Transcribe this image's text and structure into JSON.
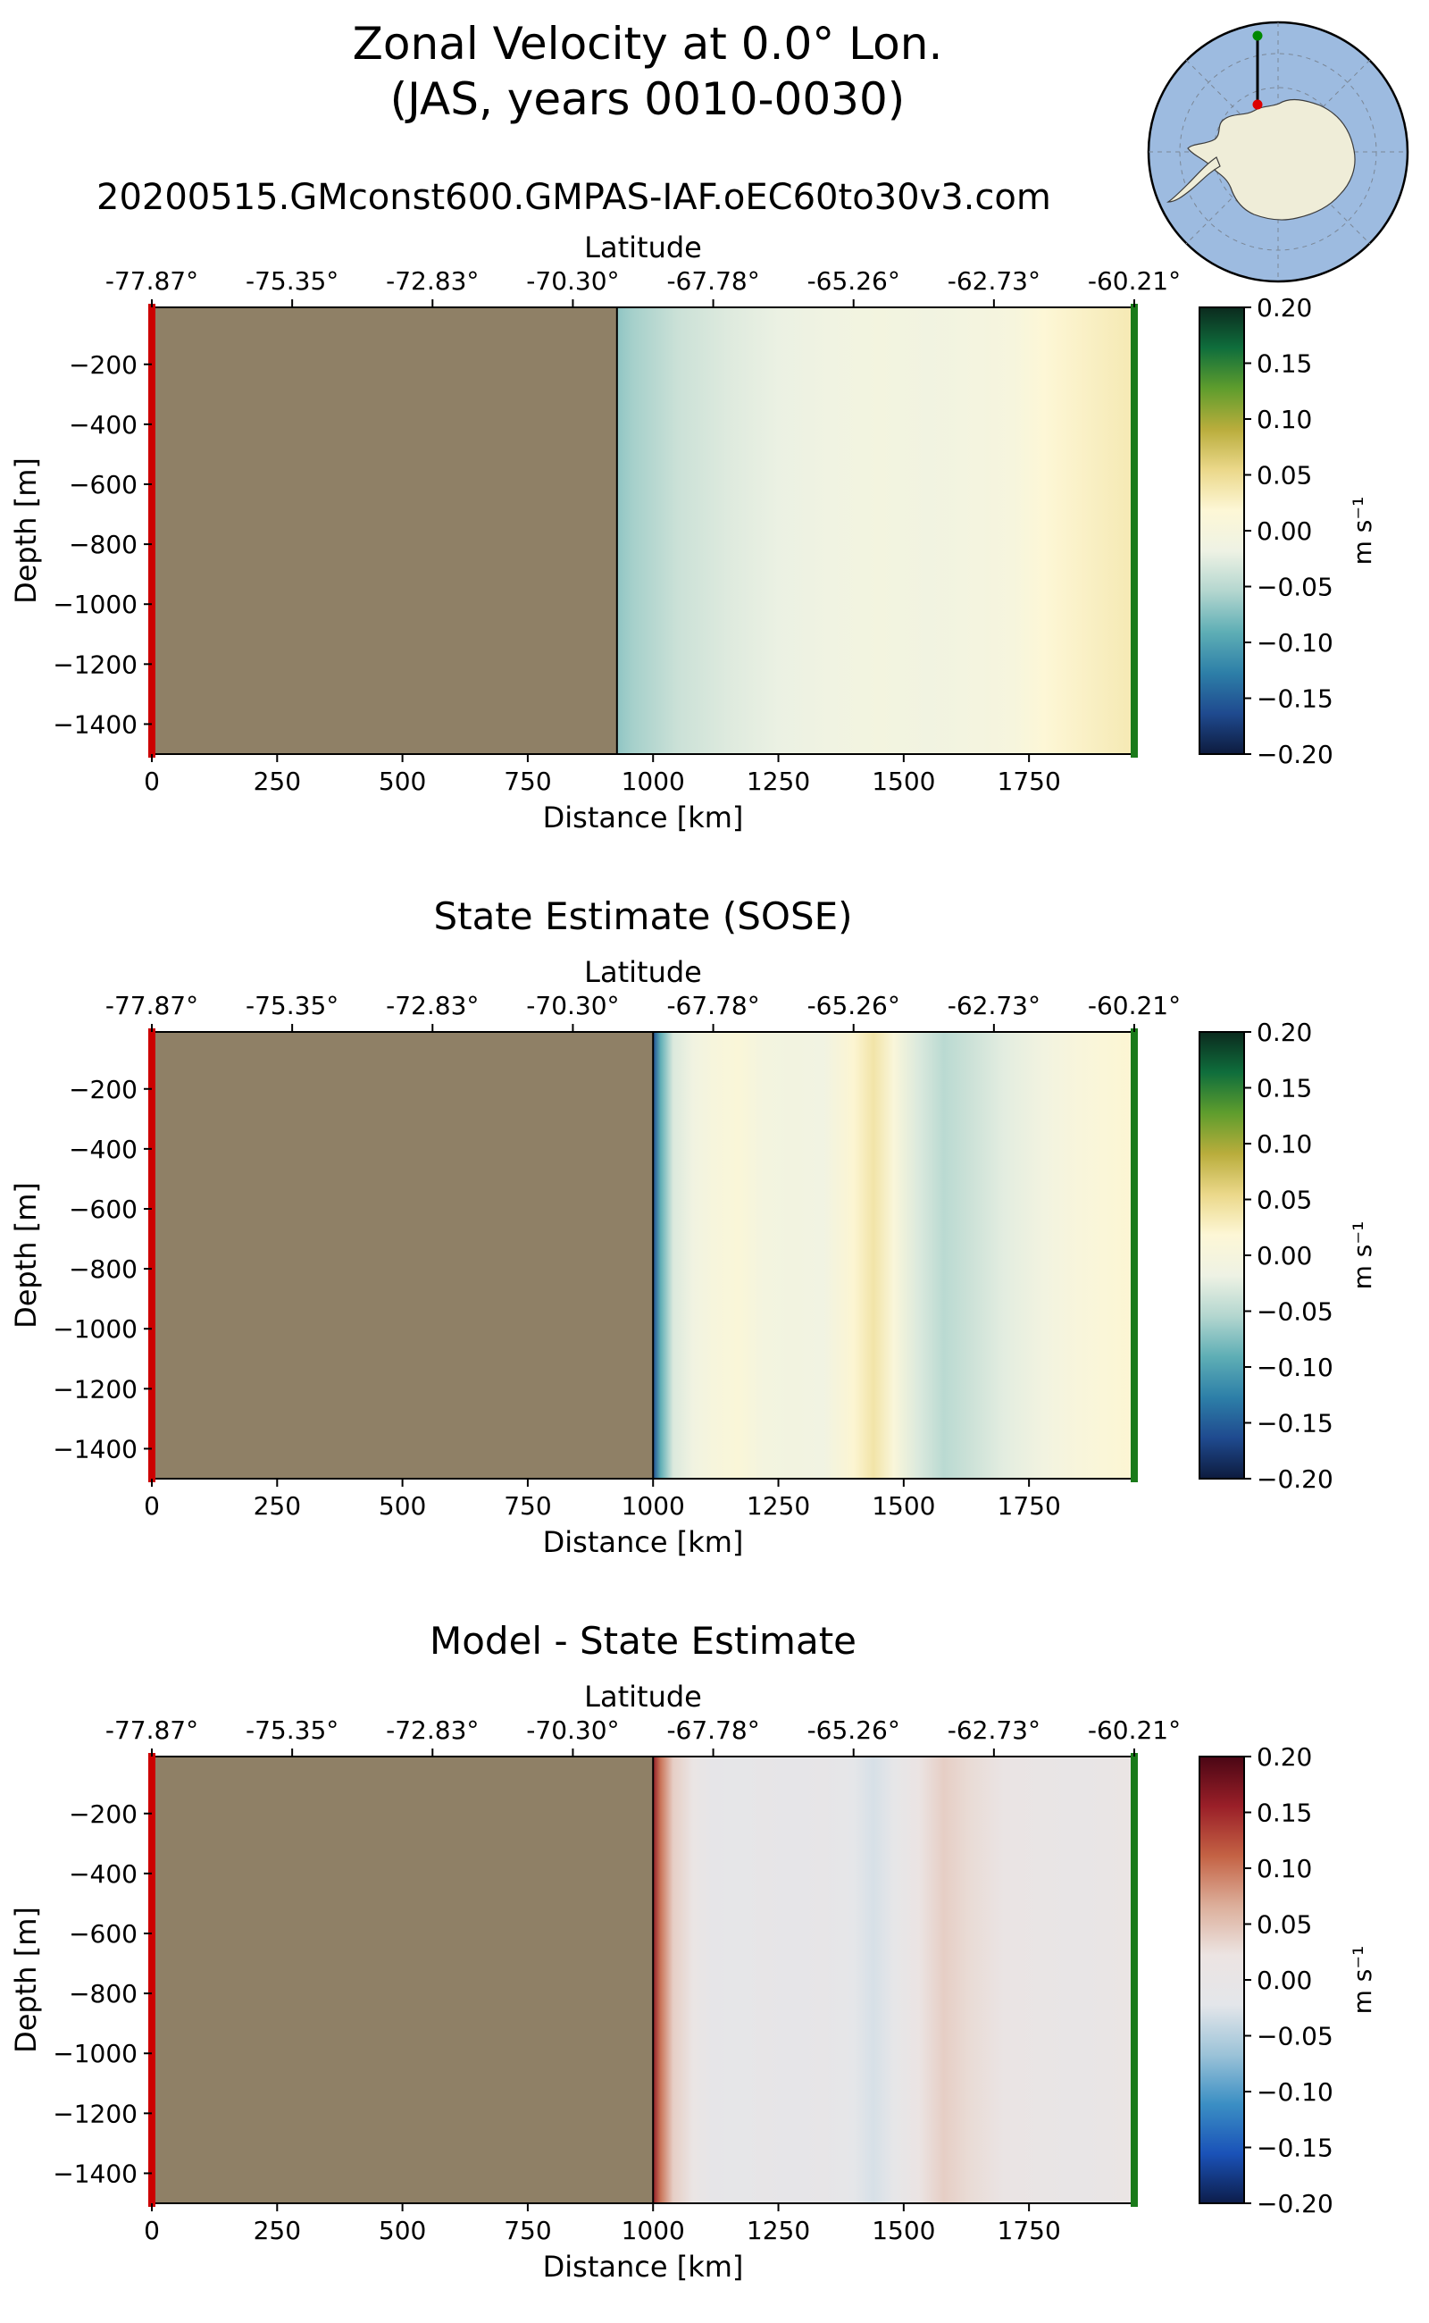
{
  "figure": {
    "title_line1": "Zonal Velocity at 0.0° Lon.",
    "title_line2": "(JAS, years 0010-0030)",
    "run_name": "20200515.GMconst600.GMPAS-IAF.oEC60to30v3.com",
    "inset_map": {
      "type": "polar stereographic map of Antarctica",
      "ocean_color": "#9dbbe0",
      "land_color": "#efedd8",
      "section_start_color": "#dd0000",
      "section_end_color": "#008800"
    }
  },
  "colors": {
    "land_mask": "#8f8066",
    "section_start": "#cc0000",
    "section_end": "#1a7a1a"
  },
  "colormaps": {
    "velocity": [
      "#0d1b3e",
      "#1f4a8f",
      "#2d7fa8",
      "#5eaeb5",
      "#b3d6cf",
      "#eef2e4",
      "#fdf7d6",
      "#ebd88a",
      "#b9ad3c",
      "#5f9d2d",
      "#0f6e3c",
      "#0b2a1e"
    ],
    "difference": [
      "#0d1d4a",
      "#1a52b8",
      "#3b8fc4",
      "#9cc3d8",
      "#e4e6ea",
      "#ece4e2",
      "#dcae9a",
      "#c46244",
      "#9a1f28",
      "#4a0614"
    ]
  },
  "chart_data": [
    {
      "type": "heatmap",
      "title": "",
      "xlabel": "Distance [km]",
      "ylabel": "Depth [m]",
      "secondary_xlabel": "Latitude",
      "xlim": [
        0,
        1960
      ],
      "ylim": [
        -1500,
        -10
      ],
      "xticks": [
        0,
        250,
        500,
        750,
        1000,
        1250,
        1500,
        1750
      ],
      "xtick_labels": [
        "0",
        "250",
        "500",
        "750",
        "1000",
        "1250",
        "1500",
        "1750"
      ],
      "yticks": [
        -200,
        -400,
        -600,
        -800,
        -1000,
        -1200,
        -1400
      ],
      "ytick_labels": [
        "−200",
        "−400",
        "−600",
        "−800",
        "−1000",
        "−1200",
        "−1400"
      ],
      "lat_ticks": [
        0,
        280,
        560,
        840,
        1120,
        1400,
        1680,
        1960
      ],
      "lat_tick_labels": [
        "-77.87°",
        "-75.35°",
        "-72.83°",
        "-70.30°",
        "-67.78°",
        "-65.26°",
        "-62.73°",
        "-60.21°"
      ],
      "land_until_km": 928,
      "colormap": "velocity",
      "colorbar": {
        "ticks": [
          0.2,
          0.15,
          0.1,
          0.05,
          0.0,
          -0.05,
          -0.1,
          -0.15,
          -0.2
        ],
        "tick_labels": [
          "0.20",
          "0.15",
          "0.10",
          "0.05",
          "0.00",
          "−0.05",
          "−0.10",
          "−0.15",
          "−0.20"
        ],
        "vmin": -0.2,
        "vmax": 0.2,
        "label": "m s⁻¹"
      },
      "profile": {
        "x_km": [
          928,
          960,
          1050,
          1150,
          1250,
          1350,
          1450,
          1550,
          1650,
          1720,
          1780,
          1850,
          1960
        ],
        "u": [
          -0.07,
          -0.06,
          -0.04,
          -0.028,
          -0.02,
          -0.013,
          -0.005,
          -0.01,
          -0.004,
          0.0,
          0.018,
          0.025,
          0.035
        ]
      }
    },
    {
      "type": "heatmap",
      "title": "State Estimate (SOSE)",
      "xlabel": "Distance [km]",
      "ylabel": "Depth [m]",
      "secondary_xlabel": "Latitude",
      "xlim": [
        0,
        1960
      ],
      "ylim": [
        -1500,
        -10
      ],
      "xticks": [
        0,
        250,
        500,
        750,
        1000,
        1250,
        1500,
        1750
      ],
      "xtick_labels": [
        "0",
        "250",
        "500",
        "750",
        "1000",
        "1250",
        "1500",
        "1750"
      ],
      "yticks": [
        -200,
        -400,
        -600,
        -800,
        -1000,
        -1200,
        -1400
      ],
      "ytick_labels": [
        "−200",
        "−400",
        "−600",
        "−800",
        "−1000",
        "−1200",
        "−1400"
      ],
      "lat_ticks": [
        0,
        280,
        560,
        840,
        1120,
        1400,
        1680,
        1960
      ],
      "lat_tick_labels": [
        "-77.87°",
        "-75.35°",
        "-72.83°",
        "-70.30°",
        "-67.78°",
        "-65.26°",
        "-62.73°",
        "-60.21°"
      ],
      "land_until_km": 1000,
      "colormap": "velocity",
      "colorbar": {
        "ticks": [
          0.2,
          0.15,
          0.1,
          0.05,
          0.0,
          -0.05,
          -0.1,
          -0.15,
          -0.2
        ],
        "tick_labels": [
          "0.20",
          "0.15",
          "0.10",
          "0.05",
          "0.00",
          "−0.05",
          "−0.10",
          "−0.15",
          "−0.20"
        ],
        "vmin": -0.2,
        "vmax": 0.2,
        "label": "m s⁻¹"
      },
      "profile": {
        "x_km": [
          1000,
          1015,
          1040,
          1080,
          1120,
          1170,
          1220,
          1280,
          1340,
          1400,
          1440,
          1480,
          1530,
          1580,
          1630,
          1700,
          1780,
          1850,
          1900,
          1960
        ],
        "u": [
          -0.16,
          -0.09,
          -0.03,
          -0.01,
          0.002,
          0.012,
          -0.005,
          -0.008,
          -0.012,
          0.02,
          0.04,
          0.008,
          -0.03,
          -0.05,
          -0.04,
          -0.025,
          -0.008,
          0.005,
          0.012,
          0.02
        ]
      }
    },
    {
      "type": "heatmap",
      "title": "Model - State Estimate",
      "xlabel": "Distance [km]",
      "ylabel": "Depth [m]",
      "secondary_xlabel": "Latitude",
      "xlim": [
        0,
        1960
      ],
      "ylim": [
        -1500,
        -10
      ],
      "xticks": [
        0,
        250,
        500,
        750,
        1000,
        1250,
        1500,
        1750
      ],
      "xtick_labels": [
        "0",
        "250",
        "500",
        "750",
        "1000",
        "1250",
        "1500",
        "1750"
      ],
      "yticks": [
        -200,
        -400,
        -600,
        -800,
        -1000,
        -1200,
        -1400
      ],
      "ytick_labels": [
        "−200",
        "−400",
        "−600",
        "−800",
        "−1000",
        "−1200",
        "−1400"
      ],
      "lat_ticks": [
        0,
        280,
        560,
        840,
        1120,
        1400,
        1680,
        1960
      ],
      "lat_tick_labels": [
        "-77.87°",
        "-75.35°",
        "-72.83°",
        "-70.30°",
        "-67.78°",
        "-65.26°",
        "-62.73°",
        "-60.21°"
      ],
      "land_until_km": 1000,
      "colormap": "difference",
      "colorbar": {
        "ticks": [
          0.2,
          0.15,
          0.1,
          0.05,
          0.0,
          -0.05,
          -0.1,
          -0.15,
          -0.2
        ],
        "tick_labels": [
          "0.20",
          "0.15",
          "0.10",
          "0.05",
          "0.00",
          "−0.05",
          "−0.10",
          "−0.15",
          "−0.20"
        ],
        "vmin": -0.2,
        "vmax": 0.2,
        "label": "m s⁻¹"
      },
      "profile": {
        "x_km": [
          1000,
          1015,
          1040,
          1080,
          1120,
          1170,
          1220,
          1280,
          1340,
          1400,
          1440,
          1480,
          1530,
          1580,
          1630,
          1700,
          1780,
          1850,
          1900,
          1960
        ],
        "u": [
          0.16,
          0.1,
          0.04,
          0.01,
          -0.01,
          -0.012,
          -0.008,
          -0.01,
          -0.006,
          -0.015,
          -0.03,
          -0.012,
          0.015,
          0.04,
          0.03,
          0.012,
          0.008,
          0.0,
          0.005,
          0.01
        ]
      }
    }
  ]
}
